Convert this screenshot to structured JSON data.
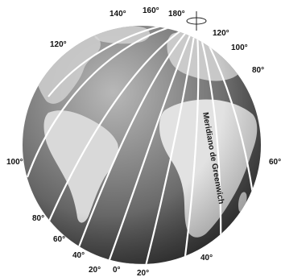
{
  "diagram": {
    "meridian_title": "Meridiano de Greenwich",
    "labels": {
      "m140": "140°",
      "m160": "160°",
      "m180": "180°",
      "m120_top": "120°",
      "m120_right": "120°",
      "m100_right": "100°",
      "m80_right": "80°",
      "m60_right": "60°",
      "m100_left": "100°",
      "m80_left": "80°",
      "m60_left": "60°",
      "m40_left": "40°",
      "m20_left": "20°",
      "m0": "0°",
      "m20_bottom": "20°",
      "m40_right": "40°"
    },
    "colors": {
      "ocean_light": "#a9a9a9",
      "ocean_dark": "#3a3a3a",
      "land": "#dedede",
      "lines": "#ffffff"
    }
  }
}
